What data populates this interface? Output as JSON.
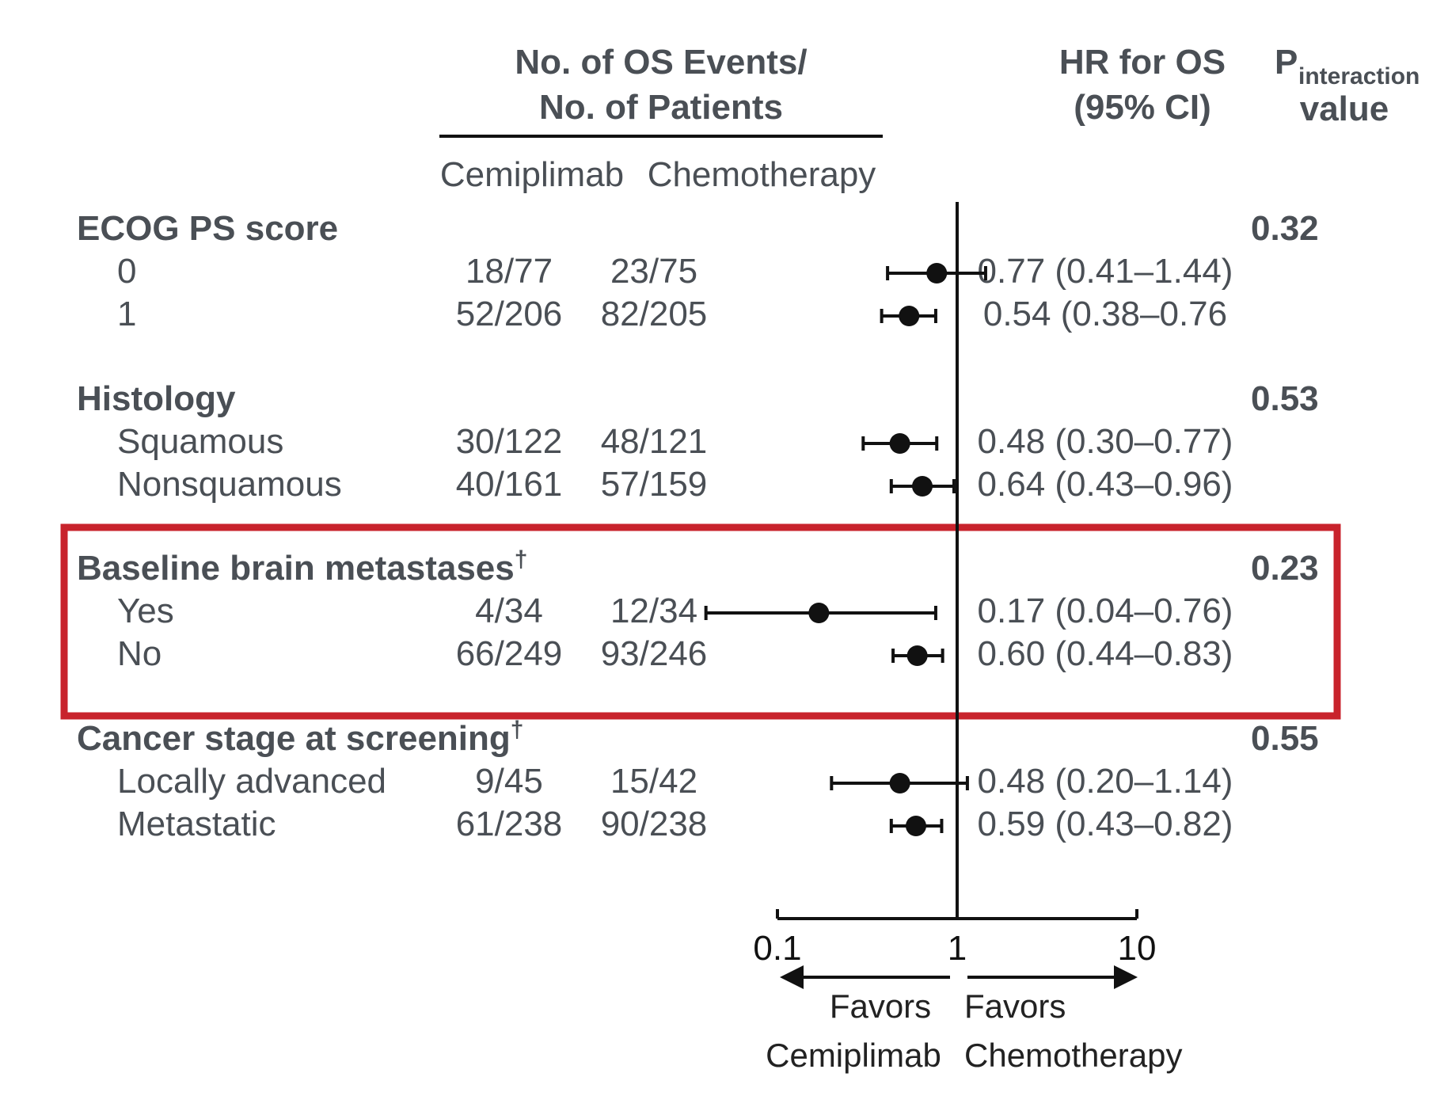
{
  "header": {
    "events_line1": "No. of OS Events/",
    "events_line2": "No. of Patients",
    "col_cemiplimab": "Cemiplimab",
    "col_chemotherapy": "Chemotherapy",
    "hr_line1": "HR for OS",
    "hr_line2": "(95% CI)",
    "p_main": "P",
    "p_sub": "interaction",
    "p_line2": "value"
  },
  "favors": {
    "left_line1": "Favors",
    "left_line2": "Cemiplimab",
    "right_line1": "Favors",
    "right_line2": "Chemotherapy"
  },
  "highlight_color": "#c8232c",
  "chart_data": {
    "type": "forest",
    "x_scale": "log",
    "xlim": [
      0.1,
      10
    ],
    "x_ticks": [
      "0.1",
      "1",
      "10"
    ],
    "reference_line": 1,
    "highlighted_group": "Baseline brain metastases",
    "groups": [
      {
        "name": "ECOG PS score",
        "dagger": "",
        "p_value": "0.32",
        "rows": [
          {
            "label": "0",
            "cemiplimab": "18/77",
            "chemotherapy": "23/75",
            "hr_text": "0.77 (0.41–1.44)",
            "hr": 0.77,
            "lo": 0.41,
            "hi": 1.44
          },
          {
            "label": "1",
            "cemiplimab": "52/206",
            "chemotherapy": "82/205",
            "hr_text": "0.54 (0.38–0.76",
            "hr": 0.54,
            "lo": 0.38,
            "hi": 0.76
          }
        ]
      },
      {
        "name": "Histology",
        "dagger": "",
        "p_value": "0.53",
        "rows": [
          {
            "label": "Squamous",
            "cemiplimab": "30/122",
            "chemotherapy": "48/121",
            "hr_text": "0.48 (0.30–0.77)",
            "hr": 0.48,
            "lo": 0.3,
            "hi": 0.77
          },
          {
            "label": "Nonsquamous",
            "cemiplimab": "40/161",
            "chemotherapy": "57/159",
            "hr_text": "0.64 (0.43–0.96)",
            "hr": 0.64,
            "lo": 0.43,
            "hi": 0.96
          }
        ]
      },
      {
        "name": "Baseline brain metastases",
        "dagger": "†",
        "p_value": "0.23",
        "rows": [
          {
            "label": "Yes",
            "cemiplimab": "4/34",
            "chemotherapy": "12/34",
            "hr_text": "0.17 (0.04–0.76)",
            "hr": 0.17,
            "lo": 0.04,
            "hi": 0.76
          },
          {
            "label": "No",
            "cemiplimab": "66/249",
            "chemotherapy": "93/246",
            "hr_text": "0.60 (0.44–0.83)",
            "hr": 0.6,
            "lo": 0.44,
            "hi": 0.83
          }
        ]
      },
      {
        "name": "Cancer stage at screening",
        "dagger": "†",
        "p_value": "0.55",
        "rows": [
          {
            "label": "Locally advanced",
            "cemiplimab": "9/45",
            "chemotherapy": "15/42",
            "hr_text": "0.48 (0.20–1.14)",
            "hr": 0.48,
            "lo": 0.2,
            "hi": 1.14
          },
          {
            "label": "Metastatic",
            "cemiplimab": "61/238",
            "chemotherapy": "90/238",
            "hr_text": "0.59 (0.43–0.82)",
            "hr": 0.59,
            "lo": 0.43,
            "hi": 0.82
          }
        ]
      }
    ]
  }
}
